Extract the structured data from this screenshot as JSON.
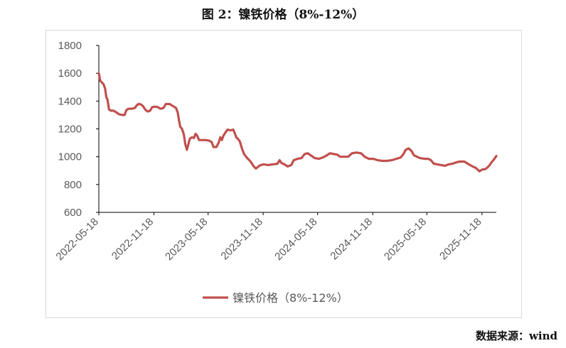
{
  "title": "图 2：镍铁价格（8%-12%）",
  "source": "数据来源：wind",
  "colors": {
    "series": "#c0504d",
    "axis": "#000000",
    "tick_text": "#595959",
    "frame": "#d9d9d9"
  },
  "chart_data": {
    "type": "line",
    "title": "图 2：镍铁价格（8%-12%）",
    "xlabel": "",
    "ylabel": "",
    "ylim": [
      600,
      1800
    ],
    "yticks": [
      600,
      800,
      1000,
      1200,
      1400,
      1600,
      1800
    ],
    "xticks": [
      "2022-05-18",
      "2022-11-18",
      "2023-05-18",
      "2023-11-18",
      "2024-05-18",
      "2024-11-18",
      "2025-05-18",
      "2025-11-18"
    ],
    "xlim": [
      "2022-05-18",
      "2026-01-05"
    ],
    "grid": false,
    "legend": "bottom",
    "series": [
      {
        "name": "镍铁价格（8%-12%）",
        "color": "#c0504d",
        "points": [
          [
            "2022-05-18",
            1600
          ],
          [
            "2022-05-23",
            1545
          ],
          [
            "2022-05-28",
            1535
          ],
          [
            "2022-06-03",
            1520
          ],
          [
            "2022-06-08",
            1490
          ],
          [
            "2022-06-12",
            1430
          ],
          [
            "2022-06-16",
            1410
          ],
          [
            "2022-06-21",
            1340
          ],
          [
            "2022-06-28",
            1330
          ],
          [
            "2022-07-05",
            1332
          ],
          [
            "2022-07-15",
            1320
          ],
          [
            "2022-07-25",
            1305
          ],
          [
            "2022-08-05",
            1300
          ],
          [
            "2022-08-12",
            1300
          ],
          [
            "2022-08-18",
            1335
          ],
          [
            "2022-08-25",
            1345
          ],
          [
            "2022-09-05",
            1345
          ],
          [
            "2022-09-15",
            1350
          ],
          [
            "2022-09-22",
            1370
          ],
          [
            "2022-09-28",
            1380
          ],
          [
            "2022-10-06",
            1375
          ],
          [
            "2022-10-12",
            1365
          ],
          [
            "2022-10-20",
            1340
          ],
          [
            "2022-10-28",
            1325
          ],
          [
            "2022-11-05",
            1330
          ],
          [
            "2022-11-12",
            1355
          ],
          [
            "2022-11-20",
            1360
          ],
          [
            "2022-11-30",
            1358
          ],
          [
            "2022-12-10",
            1345
          ],
          [
            "2022-12-20",
            1350
          ],
          [
            "2022-12-28",
            1380
          ],
          [
            "2023-01-10",
            1378
          ],
          [
            "2023-01-20",
            1365
          ],
          [
            "2023-01-31",
            1350
          ],
          [
            "2023-02-06",
            1315
          ],
          [
            "2023-02-10",
            1260
          ],
          [
            "2023-02-14",
            1215
          ],
          [
            "2023-02-20",
            1200
          ],
          [
            "2023-02-26",
            1160
          ],
          [
            "2023-03-03",
            1090
          ],
          [
            "2023-03-08",
            1050
          ],
          [
            "2023-03-12",
            1080
          ],
          [
            "2023-03-18",
            1130
          ],
          [
            "2023-03-25",
            1140
          ],
          [
            "2023-04-01",
            1135
          ],
          [
            "2023-04-06",
            1165
          ],
          [
            "2023-04-12",
            1150
          ],
          [
            "2023-04-18",
            1120
          ],
          [
            "2023-04-28",
            1120
          ],
          [
            "2023-05-10",
            1120
          ],
          [
            "2023-05-22",
            1115
          ],
          [
            "2023-05-30",
            1105
          ],
          [
            "2023-06-05",
            1070
          ],
          [
            "2023-06-15",
            1070
          ],
          [
            "2023-06-22",
            1100
          ],
          [
            "2023-06-28",
            1140
          ],
          [
            "2023-07-03",
            1120
          ],
          [
            "2023-07-08",
            1150
          ],
          [
            "2023-07-15",
            1175
          ],
          [
            "2023-07-22",
            1195
          ],
          [
            "2023-08-01",
            1190
          ],
          [
            "2023-08-10",
            1195
          ],
          [
            "2023-08-15",
            1170
          ],
          [
            "2023-08-20",
            1140
          ],
          [
            "2023-08-25",
            1130
          ],
          [
            "2023-09-01",
            1110
          ],
          [
            "2023-09-08",
            1060
          ],
          [
            "2023-09-15",
            1020
          ],
          [
            "2023-09-22",
            1000
          ],
          [
            "2023-09-30",
            980
          ],
          [
            "2023-10-05",
            970
          ],
          [
            "2023-10-12",
            950
          ],
          [
            "2023-10-18",
            930
          ],
          [
            "2023-10-25",
            915
          ],
          [
            "2023-11-02",
            930
          ],
          [
            "2023-11-10",
            940
          ],
          [
            "2023-11-20",
            945
          ],
          [
            "2023-12-05",
            940
          ],
          [
            "2023-12-20",
            945
          ],
          [
            "2024-01-05",
            950
          ],
          [
            "2024-01-12",
            975
          ],
          [
            "2024-01-18",
            955
          ],
          [
            "2024-01-28",
            945
          ],
          [
            "2024-02-08",
            930
          ],
          [
            "2024-02-20",
            940
          ],
          [
            "2024-02-28",
            975
          ],
          [
            "2024-03-12",
            985
          ],
          [
            "2024-03-25",
            990
          ],
          [
            "2024-04-05",
            1020
          ],
          [
            "2024-04-15",
            1025
          ],
          [
            "2024-04-25",
            1010
          ],
          [
            "2024-05-08",
            990
          ],
          [
            "2024-05-22",
            985
          ],
          [
            "2024-06-05",
            995
          ],
          [
            "2024-06-18",
            1010
          ],
          [
            "2024-06-28",
            1025
          ],
          [
            "2024-07-10",
            1020
          ],
          [
            "2024-07-22",
            1015
          ],
          [
            "2024-08-01",
            1000
          ],
          [
            "2024-08-15",
            1000
          ],
          [
            "2024-08-28",
            1000
          ],
          [
            "2024-09-10",
            1025
          ],
          [
            "2024-09-25",
            1030
          ],
          [
            "2024-10-10",
            1025
          ],
          [
            "2024-10-22",
            1000
          ],
          [
            "2024-11-05",
            985
          ],
          [
            "2024-11-20",
            985
          ],
          [
            "2024-12-05",
            975
          ],
          [
            "2024-12-20",
            970
          ],
          [
            "2025-01-05",
            970
          ],
          [
            "2025-01-20",
            975
          ],
          [
            "2025-02-05",
            985
          ],
          [
            "2025-02-20",
            995
          ],
          [
            "2025-03-01",
            1020
          ],
          [
            "2025-03-08",
            1050
          ],
          [
            "2025-03-18",
            1060
          ],
          [
            "2025-03-28",
            1040
          ],
          [
            "2025-04-05",
            1010
          ],
          [
            "2025-04-15",
            1000
          ],
          [
            "2025-04-25",
            990
          ],
          [
            "2025-05-10",
            985
          ],
          [
            "2025-05-22",
            985
          ],
          [
            "2025-06-01",
            975
          ],
          [
            "2025-06-10",
            950
          ],
          [
            "2025-06-22",
            945
          ],
          [
            "2025-07-05",
            940
          ],
          [
            "2025-07-18",
            935
          ],
          [
            "2025-07-30",
            945
          ],
          [
            "2025-08-12",
            950
          ],
          [
            "2025-08-25",
            960
          ],
          [
            "2025-09-05",
            965
          ],
          [
            "2025-09-20",
            965
          ],
          [
            "2025-10-05",
            945
          ],
          [
            "2025-10-18",
            930
          ],
          [
            "2025-10-28",
            920
          ],
          [
            "2025-11-05",
            905
          ],
          [
            "2025-11-10",
            895
          ],
          [
            "2025-11-16",
            905
          ],
          [
            "2025-11-22",
            910
          ],
          [
            "2025-11-28",
            910
          ],
          [
            "2025-12-05",
            920
          ],
          [
            "2025-12-12",
            935
          ],
          [
            "2025-12-20",
            960
          ],
          [
            "2025-12-28",
            980
          ],
          [
            "2026-01-05",
            1005
          ]
        ]
      }
    ]
  }
}
